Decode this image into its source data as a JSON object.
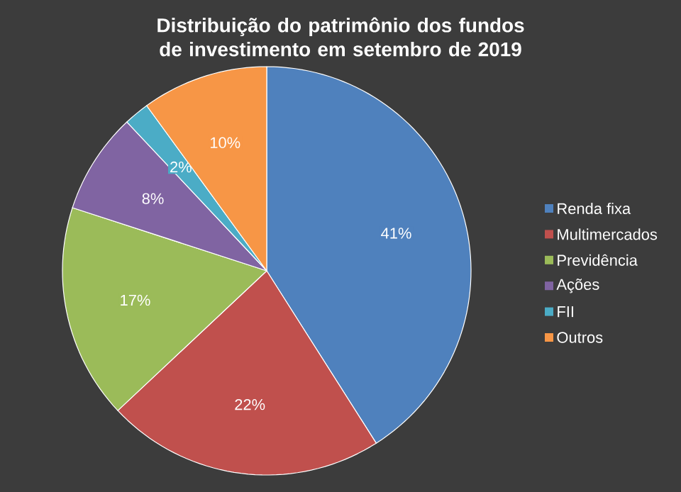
{
  "chart_data": {
    "type": "pie",
    "title": "Distribuição do patrimônio dos fundos de investimento em setembro de 2019",
    "categories": [
      "Renda fixa",
      "Multimercados",
      "Previdência",
      "Ações",
      "FII",
      "Outros"
    ],
    "values": [
      41,
      22,
      17,
      8,
      2,
      10
    ],
    "value_labels": [
      "41%",
      "22%",
      "17%",
      "8%",
      "2%",
      "10%"
    ],
    "colors": [
      "#4f81bd",
      "#c0504d",
      "#9bbb59",
      "#8064a2",
      "#4bacc6",
      "#f79646"
    ],
    "legend": "right"
  }
}
